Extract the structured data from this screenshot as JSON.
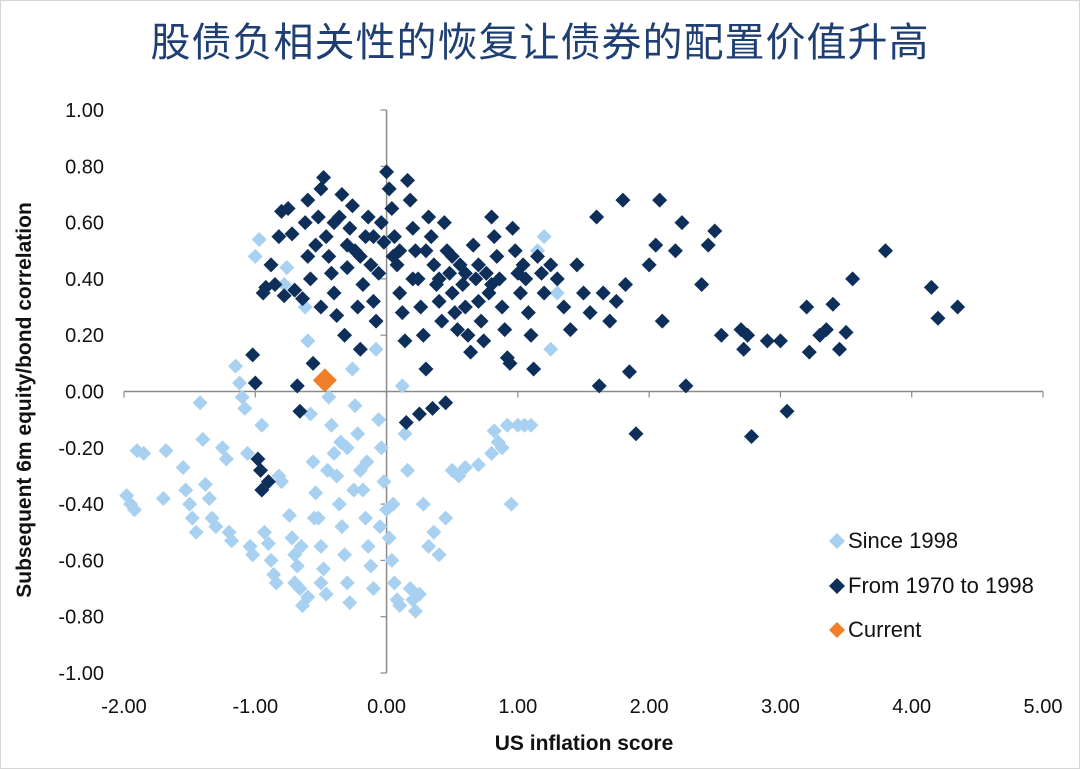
{
  "chart_data": {
    "type": "scatter",
    "title": "股债负相关性的恢复让债券的配置价值升高",
    "xlabel": "US inflation score",
    "ylabel": "Subsequent 6m equity/bond  correlation",
    "xlim": [
      -2.0,
      5.0
    ],
    "ylim": [
      -1.0,
      1.0
    ],
    "x_ticks": [
      "-2.00",
      "-1.00",
      "0.00",
      "1.00",
      "2.00",
      "3.00",
      "4.00",
      "5.00"
    ],
    "y_ticks": [
      "1.00",
      "0.80",
      "0.60",
      "0.40",
      "0.20",
      "0.00",
      "-0.20",
      "-0.40",
      "-0.60",
      "-0.80",
      "-1.00"
    ],
    "grid": false,
    "legend_position": "bottom-right",
    "series": [
      {
        "name": "Since 1998",
        "color": "#a8d0f0",
        "marker": "diamond",
        "points": [
          [
            -1.98,
            -0.37
          ],
          [
            -1.95,
            -0.4
          ],
          [
            -1.92,
            -0.42
          ],
          [
            -1.9,
            -0.21
          ],
          [
            -1.85,
            -0.22
          ],
          [
            -1.7,
            -0.38
          ],
          [
            -1.68,
            -0.21
          ],
          [
            -1.55,
            -0.27
          ],
          [
            -1.53,
            -0.35
          ],
          [
            -1.5,
            -0.4
          ],
          [
            -1.48,
            -0.45
          ],
          [
            -1.45,
            -0.5
          ],
          [
            -1.42,
            -0.04
          ],
          [
            -1.4,
            -0.17
          ],
          [
            -1.38,
            -0.33
          ],
          [
            -1.35,
            -0.38
          ],
          [
            -1.33,
            -0.45
          ],
          [
            -1.3,
            -0.48
          ],
          [
            -1.25,
            -0.2
          ],
          [
            -1.22,
            -0.24
          ],
          [
            -1.2,
            -0.5
          ],
          [
            -1.18,
            -0.53
          ],
          [
            -1.15,
            0.09
          ],
          [
            -1.12,
            0.03
          ],
          [
            -1.1,
            -0.02
          ],
          [
            -1.08,
            -0.06
          ],
          [
            -1.06,
            -0.22
          ],
          [
            -1.04,
            -0.55
          ],
          [
            -1.02,
            -0.58
          ],
          [
            -1.0,
            0.48
          ],
          [
            -0.97,
            0.54
          ],
          [
            -0.95,
            -0.12
          ],
          [
            -0.93,
            -0.5
          ],
          [
            -0.9,
            -0.54
          ],
          [
            -0.88,
            -0.6
          ],
          [
            -0.86,
            -0.65
          ],
          [
            -0.84,
            -0.68
          ],
          [
            -0.82,
            -0.3
          ],
          [
            -0.8,
            -0.32
          ],
          [
            -0.78,
            0.38
          ],
          [
            -0.76,
            0.44
          ],
          [
            -0.74,
            -0.44
          ],
          [
            -0.72,
            -0.52
          ],
          [
            -0.7,
            -0.58
          ],
          [
            -0.68,
            -0.62
          ],
          [
            -0.66,
            -0.7
          ],
          [
            -0.64,
            -0.76
          ],
          [
            -0.62,
            0.3
          ],
          [
            -0.6,
            0.18
          ],
          [
            -0.58,
            -0.08
          ],
          [
            -0.56,
            -0.25
          ],
          [
            -0.54,
            -0.36
          ],
          [
            -0.52,
            -0.45
          ],
          [
            -0.5,
            -0.55
          ],
          [
            -0.48,
            -0.63
          ],
          [
            -0.46,
            -0.72
          ],
          [
            -0.44,
            -0.02
          ],
          [
            -0.42,
            -0.12
          ],
          [
            -0.4,
            -0.22
          ],
          [
            -0.38,
            -0.3
          ],
          [
            -0.36,
            -0.4
          ],
          [
            -0.34,
            -0.48
          ],
          [
            -0.32,
            -0.58
          ],
          [
            -0.3,
            -0.68
          ],
          [
            -0.28,
            -0.75
          ],
          [
            -0.26,
            0.08
          ],
          [
            -0.24,
            -0.05
          ],
          [
            -0.22,
            -0.15
          ],
          [
            -0.2,
            -0.28
          ],
          [
            -0.18,
            -0.35
          ],
          [
            -0.16,
            -0.45
          ],
          [
            -0.14,
            -0.55
          ],
          [
            -0.12,
            -0.62
          ],
          [
            -0.1,
            -0.7
          ],
          [
            -0.08,
            0.15
          ],
          [
            -0.06,
            -0.1
          ],
          [
            -0.04,
            -0.2
          ],
          [
            -0.02,
            -0.32
          ],
          [
            0.0,
            -0.42
          ],
          [
            0.02,
            -0.52
          ],
          [
            0.04,
            -0.6
          ],
          [
            0.06,
            -0.68
          ],
          [
            0.08,
            -0.74
          ],
          [
            0.1,
            -0.76
          ],
          [
            0.12,
            0.02
          ],
          [
            0.14,
            -0.15
          ],
          [
            0.16,
            -0.28
          ],
          [
            0.18,
            -0.7
          ],
          [
            0.2,
            -0.74
          ],
          [
            0.22,
            -0.78
          ],
          [
            0.25,
            -0.72
          ],
          [
            0.28,
            -0.4
          ],
          [
            0.32,
            -0.55
          ],
          [
            0.36,
            -0.5
          ],
          [
            0.4,
            -0.58
          ],
          [
            0.45,
            -0.45
          ],
          [
            0.5,
            -0.28
          ],
          [
            0.55,
            -0.3
          ],
          [
            0.6,
            -0.27
          ],
          [
            0.7,
            -0.26
          ],
          [
            0.8,
            -0.22
          ],
          [
            0.82,
            -0.14
          ],
          [
            0.85,
            -0.18
          ],
          [
            0.88,
            -0.2
          ],
          [
            0.92,
            -0.12
          ],
          [
            0.95,
            -0.4
          ],
          [
            1.0,
            -0.12
          ],
          [
            1.05,
            -0.12
          ],
          [
            1.1,
            -0.12
          ],
          [
            1.15,
            0.5
          ],
          [
            1.2,
            0.55
          ],
          [
            1.25,
            0.15
          ],
          [
            1.3,
            0.35
          ],
          [
            -0.3,
            -0.2
          ],
          [
            -0.25,
            -0.35
          ],
          [
            -0.35,
            -0.18
          ],
          [
            -0.45,
            -0.28
          ],
          [
            -0.55,
            -0.45
          ],
          [
            -0.65,
            -0.55
          ],
          [
            -0.15,
            -0.25
          ],
          [
            -0.05,
            -0.48
          ],
          [
            0.05,
            -0.4
          ],
          [
            -0.7,
            -0.68
          ],
          [
            -0.6,
            -0.73
          ],
          [
            -0.5,
            -0.68
          ]
        ]
      },
      {
        "name": "From 1970 to 1998",
        "color": "#0e2f5a",
        "marker": "diamond",
        "points": [
          [
            -1.02,
            0.13
          ],
          [
            -1.0,
            0.03
          ],
          [
            -0.98,
            -0.24
          ],
          [
            -0.96,
            -0.28
          ],
          [
            -0.95,
            -0.35
          ],
          [
            -0.94,
            0.35
          ],
          [
            -0.92,
            0.37
          ],
          [
            -0.9,
            -0.32
          ],
          [
            -0.88,
            0.45
          ],
          [
            -0.85,
            0.38
          ],
          [
            -0.82,
            0.55
          ],
          [
            -0.8,
            0.64
          ],
          [
            -0.78,
            0.34
          ],
          [
            -0.75,
            0.65
          ],
          [
            -0.72,
            0.56
          ],
          [
            -0.7,
            0.36
          ],
          [
            -0.68,
            0.02
          ],
          [
            -0.66,
            -0.07
          ],
          [
            -0.64,
            0.33
          ],
          [
            -0.62,
            0.6
          ],
          [
            -0.6,
            0.68
          ],
          [
            -0.58,
            0.4
          ],
          [
            -0.56,
            0.1
          ],
          [
            -0.54,
            0.52
          ],
          [
            -0.52,
            0.62
          ],
          [
            -0.5,
            0.72
          ],
          [
            -0.48,
            0.76
          ],
          [
            -0.46,
            0.55
          ],
          [
            -0.44,
            0.48
          ],
          [
            -0.42,
            0.42
          ],
          [
            -0.4,
            0.35
          ],
          [
            -0.38,
            0.27
          ],
          [
            -0.36,
            0.62
          ],
          [
            -0.34,
            0.7
          ],
          [
            -0.32,
            0.2
          ],
          [
            -0.3,
            0.44
          ],
          [
            -0.28,
            0.58
          ],
          [
            -0.26,
            0.66
          ],
          [
            -0.24,
            0.5
          ],
          [
            -0.22,
            0.3
          ],
          [
            -0.2,
            0.15
          ],
          [
            -0.18,
            0.38
          ],
          [
            -0.16,
            0.55
          ],
          [
            -0.14,
            0.62
          ],
          [
            -0.12,
            0.45
          ],
          [
            -0.1,
            0.32
          ],
          [
            -0.08,
            0.25
          ],
          [
            -0.06,
            0.42
          ],
          [
            -0.04,
            0.6
          ],
          [
            -0.02,
            0.53
          ],
          [
            0.0,
            0.78
          ],
          [
            0.02,
            0.72
          ],
          [
            0.04,
            0.65
          ],
          [
            0.06,
            0.55
          ],
          [
            0.08,
            0.45
          ],
          [
            0.1,
            0.35
          ],
          [
            0.12,
            0.28
          ],
          [
            0.14,
            0.18
          ],
          [
            0.16,
            0.75
          ],
          [
            0.18,
            0.68
          ],
          [
            0.2,
            0.58
          ],
          [
            0.22,
            0.5
          ],
          [
            0.24,
            0.4
          ],
          [
            0.26,
            0.3
          ],
          [
            0.28,
            0.2
          ],
          [
            0.3,
            0.08
          ],
          [
            0.32,
            0.62
          ],
          [
            0.34,
            0.55
          ],
          [
            0.36,
            0.45
          ],
          [
            0.38,
            0.38
          ],
          [
            0.4,
            0.32
          ],
          [
            0.42,
            0.25
          ],
          [
            0.44,
            0.6
          ],
          [
            0.46,
            0.5
          ],
          [
            0.48,
            0.42
          ],
          [
            0.5,
            0.35
          ],
          [
            0.52,
            0.28
          ],
          [
            0.54,
            0.22
          ],
          [
            0.56,
            0.45
          ],
          [
            0.58,
            0.38
          ],
          [
            0.6,
            0.3
          ],
          [
            0.62,
            0.2
          ],
          [
            0.64,
            0.14
          ],
          [
            0.66,
            0.52
          ],
          [
            0.68,
            0.4
          ],
          [
            0.7,
            0.32
          ],
          [
            0.72,
            0.25
          ],
          [
            0.74,
            0.18
          ],
          [
            0.76,
            0.42
          ],
          [
            0.78,
            0.35
          ],
          [
            0.8,
            0.62
          ],
          [
            0.82,
            0.55
          ],
          [
            0.84,
            0.48
          ],
          [
            0.86,
            0.4
          ],
          [
            0.88,
            0.3
          ],
          [
            0.9,
            0.22
          ],
          [
            0.92,
            0.12
          ],
          [
            0.94,
            0.1
          ],
          [
            0.96,
            0.58
          ],
          [
            0.98,
            0.5
          ],
          [
            1.0,
            0.42
          ],
          [
            1.02,
            0.35
          ],
          [
            1.04,
            0.45
          ],
          [
            1.06,
            0.4
          ],
          [
            1.08,
            0.28
          ],
          [
            1.1,
            0.2
          ],
          [
            1.12,
            0.08
          ],
          [
            1.15,
            0.48
          ],
          [
            1.18,
            0.42
          ],
          [
            1.2,
            0.35
          ],
          [
            1.25,
            0.45
          ],
          [
            1.3,
            0.4
          ],
          [
            1.35,
            0.3
          ],
          [
            1.4,
            0.22
          ],
          [
            1.45,
            0.45
          ],
          [
            1.5,
            0.35
          ],
          [
            1.55,
            0.28
          ],
          [
            1.6,
            0.62
          ],
          [
            1.62,
            0.02
          ],
          [
            1.65,
            0.35
          ],
          [
            1.7,
            0.25
          ],
          [
            1.75,
            0.32
          ],
          [
            1.8,
            0.68
          ],
          [
            1.82,
            0.38
          ],
          [
            1.85,
            0.07
          ],
          [
            1.9,
            -0.15
          ],
          [
            2.0,
            0.45
          ],
          [
            2.05,
            0.52
          ],
          [
            2.08,
            0.68
          ],
          [
            2.1,
            0.25
          ],
          [
            2.2,
            0.5
          ],
          [
            2.25,
            0.6
          ],
          [
            2.28,
            0.02
          ],
          [
            2.4,
            0.38
          ],
          [
            2.45,
            0.52
          ],
          [
            2.5,
            0.57
          ],
          [
            2.55,
            0.2
          ],
          [
            2.7,
            0.22
          ],
          [
            2.72,
            0.15
          ],
          [
            2.75,
            0.2
          ],
          [
            2.78,
            -0.16
          ],
          [
            2.9,
            0.18
          ],
          [
            3.0,
            0.18
          ],
          [
            3.05,
            -0.07
          ],
          [
            3.2,
            0.3
          ],
          [
            3.22,
            0.14
          ],
          [
            3.3,
            0.2
          ],
          [
            3.35,
            0.22
          ],
          [
            3.4,
            0.31
          ],
          [
            3.45,
            0.15
          ],
          [
            3.5,
            0.21
          ],
          [
            3.55,
            0.4
          ],
          [
            3.8,
            0.5
          ],
          [
            4.15,
            0.37
          ],
          [
            4.2,
            0.26
          ],
          [
            4.35,
            0.3
          ],
          [
            0.15,
            -0.11
          ],
          [
            0.25,
            -0.08
          ],
          [
            0.35,
            -0.06
          ],
          [
            0.45,
            -0.04
          ],
          [
            -0.6,
            0.48
          ],
          [
            -0.5,
            0.3
          ],
          [
            -0.4,
            0.6
          ],
          [
            -0.3,
            0.52
          ],
          [
            -0.2,
            0.48
          ],
          [
            -0.1,
            0.55
          ],
          [
            0.05,
            0.48
          ],
          [
            0.1,
            0.5
          ],
          [
            0.2,
            0.4
          ],
          [
            0.3,
            0.5
          ],
          [
            0.4,
            0.4
          ],
          [
            0.5,
            0.48
          ],
          [
            0.6,
            0.42
          ],
          [
            0.7,
            0.45
          ],
          [
            0.8,
            0.38
          ]
        ]
      },
      {
        "name": "Current",
        "color": "#f07f2a",
        "marker": "diamond",
        "points": [
          [
            -0.47,
            0.04
          ]
        ]
      }
    ]
  }
}
